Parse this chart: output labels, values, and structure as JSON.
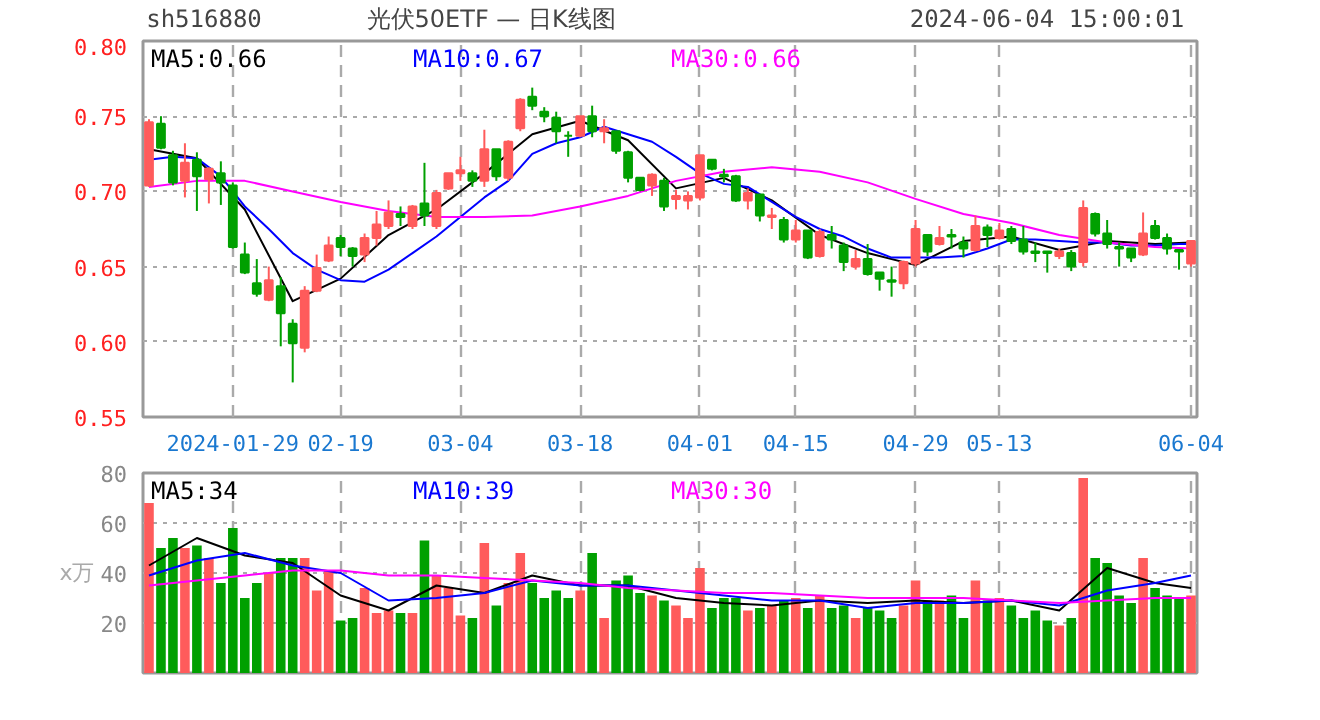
{
  "chart_data": [
    {
      "type": "candlestick",
      "title": "光伏50ETF — 日K线图",
      "subtitle": "sh516880",
      "annotations": [
        "2024-06-04 15:00:01"
      ],
      "categories": [
        null,
        null,
        null,
        null,
        null,
        null,
        null,
        "2024-01-29",
        null,
        null,
        null,
        null,
        null,
        null,
        null,
        null,
        "02-19",
        null,
        null,
        null,
        null,
        null,
        null,
        null,
        null,
        null,
        "03-04",
        null,
        null,
        null,
        null,
        null,
        null,
        null,
        null,
        null,
        "03-18",
        null,
        null,
        null,
        null,
        null,
        null,
        null,
        null,
        null,
        "04-01",
        null,
        null,
        null,
        null,
        null,
        null,
        null,
        "04-15",
        null,
        null,
        null,
        null,
        null,
        null,
        null,
        null,
        null,
        "04-29",
        null,
        null,
        null,
        null,
        null,
        null,
        "05-13",
        null,
        null,
        null,
        null,
        null,
        null,
        null,
        null,
        null,
        null,
        null,
        null,
        null,
        null,
        null,
        "06-04"
      ],
      "ylim": [
        0.55,
        0.8
      ],
      "yticks": [
        0.55,
        {
          "value": 0.6,
          "label": "0.60"
        },
        0.65,
        {
          "value": 0.7,
          "label": "0.70"
        },
        0.75,
        {
          "value": 0.8,
          "label": "0.80"
        }
      ],
      "grid": true,
      "legend": "top",
      "ohlc": [
        [
          0.704,
          0.748,
          0.703,
          0.746
        ],
        [
          0.745,
          0.75,
          0.728,
          0.729
        ],
        [
          0.724,
          0.727,
          0.704,
          0.706
        ],
        [
          0.707,
          0.732,
          0.696,
          0.719
        ],
        [
          0.721,
          0.726,
          0.687,
          0.71
        ],
        [
          0.708,
          0.716,
          0.692,
          0.715
        ],
        [
          0.712,
          0.72,
          0.691,
          0.706
        ],
        [
          0.704,
          0.706,
          0.662,
          0.663
        ],
        [
          0.658,
          0.666,
          0.645,
          0.646
        ],
        [
          0.639,
          0.655,
          0.63,
          0.632
        ],
        [
          0.628,
          0.65,
          0.627,
          0.641
        ],
        [
          0.637,
          0.643,
          0.597,
          0.619
        ],
        [
          0.612,
          0.615,
          0.573,
          0.599
        ],
        [
          0.596,
          0.637,
          0.593,
          0.634
        ],
        [
          0.634,
          0.658,
          0.633,
          0.649
        ],
        [
          0.654,
          0.67,
          0.653,
          0.664
        ],
        [
          0.669,
          0.671,
          0.657,
          0.663
        ],
        [
          0.662,
          0.663,
          0.65,
          0.657
        ],
        [
          0.658,
          0.672,
          0.653,
          0.669
        ],
        [
          0.669,
          0.687,
          0.664,
          0.678
        ],
        [
          0.677,
          0.694,
          0.675,
          0.686
        ],
        [
          0.685,
          0.69,
          0.677,
          0.683
        ],
        [
          0.677,
          0.691,
          0.675,
          0.69
        ],
        [
          0.692,
          0.719,
          0.677,
          0.684
        ],
        [
          0.677,
          0.701,
          0.675,
          0.699
        ],
        [
          0.702,
          0.712,
          0.701,
          0.712
        ],
        [
          0.712,
          0.723,
          0.707,
          0.714
        ],
        [
          0.712,
          0.714,
          0.703,
          0.707
        ],
        [
          0.707,
          0.741,
          0.703,
          0.728
        ],
        [
          0.728,
          0.728,
          0.707,
          0.71
        ],
        [
          0.709,
          0.734,
          0.707,
          0.733
        ],
        [
          0.742,
          0.762,
          0.74,
          0.761
        ],
        [
          0.763,
          0.769,
          0.754,
          0.757
        ],
        [
          0.753,
          0.756,
          0.746,
          0.75
        ],
        [
          0.749,
          0.753,
          0.732,
          0.74
        ],
        [
          0.737,
          0.74,
          0.723,
          0.737
        ],
        [
          0.737,
          0.75,
          0.736,
          0.75
        ],
        [
          0.75,
          0.757,
          0.736,
          0.74
        ],
        [
          0.74,
          0.748,
          0.732,
          0.742
        ],
        [
          0.74,
          0.74,
          0.725,
          0.727
        ],
        [
          0.726,
          0.727,
          0.706,
          0.709
        ],
        [
          0.709,
          0.709,
          0.7,
          0.701
        ],
        [
          0.704,
          0.712,
          0.697,
          0.711
        ],
        [
          0.707,
          0.709,
          0.687,
          0.69
        ],
        [
          0.695,
          0.701,
          0.688,
          0.697
        ],
        [
          0.694,
          0.7,
          0.688,
          0.697
        ],
        [
          0.696,
          0.724,
          0.694,
          0.724
        ],
        [
          0.721,
          0.721,
          0.714,
          0.715
        ],
        [
          0.711,
          0.715,
          0.706,
          0.71
        ],
        [
          0.71,
          0.711,
          0.693,
          0.694
        ],
        [
          0.694,
          0.702,
          0.688,
          0.699
        ],
        [
          0.698,
          0.698,
          0.68,
          0.684
        ],
        [
          0.683,
          0.689,
          0.675,
          0.684
        ],
        [
          0.681,
          0.683,
          0.666,
          0.668
        ],
        [
          0.668,
          0.681,
          0.666,
          0.674
        ],
        [
          0.674,
          0.674,
          0.655,
          0.656
        ],
        [
          0.657,
          0.675,
          0.656,
          0.673
        ],
        [
          0.671,
          0.677,
          0.662,
          0.668
        ],
        [
          0.664,
          0.666,
          0.647,
          0.653
        ],
        [
          0.65,
          0.661,
          0.648,
          0.655
        ],
        [
          0.655,
          0.665,
          0.644,
          0.645
        ],
        [
          0.646,
          0.646,
          0.634,
          0.642
        ],
        [
          0.641,
          0.65,
          0.63,
          0.64
        ],
        [
          0.639,
          0.654,
          0.635,
          0.653
        ],
        [
          0.652,
          0.681,
          0.65,
          0.675
        ],
        [
          0.671,
          0.671,
          0.657,
          0.66
        ],
        [
          0.665,
          0.677,
          0.664,
          0.669
        ],
        [
          0.671,
          0.675,
          0.662,
          0.67
        ],
        [
          0.666,
          0.67,
          0.656,
          0.662
        ],
        [
          0.661,
          0.684,
          0.66,
          0.677
        ],
        [
          0.676,
          0.678,
          0.663,
          0.671
        ],
        [
          0.669,
          0.679,
          0.668,
          0.674
        ],
        [
          0.675,
          0.677,
          0.665,
          0.667
        ],
        [
          0.668,
          0.677,
          0.658,
          0.66
        ],
        [
          0.66,
          0.666,
          0.653,
          0.659
        ],
        [
          0.66,
          0.66,
          0.646,
          0.659
        ],
        [
          0.657,
          0.662,
          0.655,
          0.66
        ],
        [
          0.659,
          0.661,
          0.647,
          0.65
        ],
        [
          0.653,
          0.694,
          0.65,
          0.689
        ],
        [
          0.685,
          0.686,
          0.67,
          0.672
        ],
        [
          0.672,
          0.681,
          0.662,
          0.665
        ],
        [
          0.663,
          0.666,
          0.65,
          0.662
        ],
        [
          0.662,
          0.662,
          0.653,
          0.656
        ],
        [
          0.658,
          0.686,
          0.657,
          0.672
        ],
        [
          0.677,
          0.681,
          0.668,
          0.669
        ],
        [
          0.669,
          0.672,
          0.658,
          0.662
        ],
        [
          0.661,
          0.661,
          0.648,
          0.66
        ],
        [
          0.652,
          0.667,
          0.65,
          0.667
        ]
      ],
      "colors": [
        "#ff5b5b",
        "#00a000",
        "#00a000",
        "#ff5b5b",
        "#00a000",
        "#ff5b5b",
        "#00a000",
        "#00a000",
        "#00a000",
        "#00a000",
        "#ff5b5b",
        "#00a000",
        "#00a000",
        "#ff5b5b",
        "#ff5b5b",
        "#ff5b5b",
        "#00a000",
        "#00a000",
        "#ff5b5b",
        "#ff5b5b",
        "#ff5b5b",
        "#00a000",
        "#ff5b5b",
        "#00a000",
        "#ff5b5b",
        "#ff5b5b",
        "#ff5b5b",
        "#00a000",
        "#ff5b5b",
        "#00a000",
        "#ff5b5b",
        "#ff5b5b",
        "#00a000",
        "#00a000",
        "#00a000",
        "#00a000",
        "#ff5b5b",
        "#00a000",
        "#ff5b5b",
        "#00a000",
        "#00a000",
        "#00a000",
        "#ff5b5b",
        "#00a000",
        "#ff5b5b",
        "#ff5b5b",
        "#ff5b5b",
        "#00a000",
        "#00a000",
        "#00a000",
        "#ff5b5b",
        "#00a000",
        "#ff5b5b",
        "#00a000",
        "#ff5b5b",
        "#00a000",
        "#ff5b5b",
        "#00a000",
        "#00a000",
        "#ff5b5b",
        "#00a000",
        "#00a000",
        "#00a000",
        "#ff5b5b",
        "#ff5b5b",
        "#00a000",
        "#ff5b5b",
        "#00a000",
        "#00a000",
        "#ff5b5b",
        "#00a000",
        "#ff5b5b",
        "#00a000",
        "#00a000",
        "#00a000",
        "#00a000",
        "#ff5b5b",
        "#00a000",
        "#ff5b5b",
        "#00a000",
        "#00a000",
        "#00a000",
        "#00a000",
        "#ff5b5b",
        "#00a000",
        "#00a000",
        "#00a000",
        "#ff5b5b"
      ],
      "series": [
        {
          "type": "line",
          "name": "MA5:0.66",
          "color": "#000000",
          "values": [
            0.728,
            null,
            null,
            null,
            0.722,
            null,
            null,
            null,
            0.688,
            null,
            null,
            null,
            0.627,
            null,
            null,
            null,
            0.642,
            null,
            null,
            null,
            0.671,
            null,
            null,
            null,
            0.688,
            null,
            null,
            null,
            0.712,
            null,
            null,
            null,
            0.738,
            null,
            null,
            null,
            0.747,
            null,
            null,
            null,
            0.734,
            null,
            null,
            null,
            0.702,
            null,
            null,
            null,
            0.709,
            null,
            null,
            null,
            0.694,
            null,
            null,
            null,
            0.671,
            null,
            null,
            null,
            0.659,
            null,
            null,
            null,
            0.651,
            null,
            null,
            null,
            0.667,
            null,
            null,
            null,
            0.67,
            null,
            null,
            null,
            0.661,
            null,
            null,
            null,
            0.667,
            null,
            null,
            null,
            0.665,
            null,
            null,
            0.666
          ]
        },
        {
          "type": "line",
          "name": "MA10:0.67",
          "color": "#0000ff",
          "values": [
            0.721,
            null,
            0.723,
            null,
            0.722,
            null,
            0.71,
            null,
            0.69,
            null,
            0.675,
            null,
            0.659,
            null,
            0.648,
            null,
            0.641,
            null,
            0.64,
            null,
            0.648,
            null,
            0.659,
            null,
            0.67,
            null,
            0.683,
            null,
            0.696,
            null,
            0.707,
            null,
            0.725,
            null,
            0.732,
            null,
            0.736,
            null,
            0.743,
            null,
            0.738,
            null,
            0.733,
            null,
            0.723,
            null,
            0.712,
            null,
            0.705,
            null,
            0.703,
            null,
            0.693,
            null,
            0.683,
            null,
            0.675,
            null,
            0.67,
            null,
            0.662,
            null,
            0.656,
            null,
            0.656,
            null,
            0.656,
            null,
            0.657,
            null,
            0.662,
            null,
            0.668,
            null,
            0.668,
            null,
            0.667,
            null,
            0.666,
            null,
            0.666,
            null,
            0.664,
            null,
            0.664,
            null,
            0.665,
            0.665
          ]
        },
        {
          "type": "line",
          "name": "MA30:0.66",
          "color": "#ff00ff",
          "values": [
            0.703,
            null,
            null,
            null,
            0.707,
            null,
            null,
            null,
            0.707,
            null,
            null,
            null,
            0.7,
            null,
            null,
            null,
            0.693,
            null,
            null,
            null,
            0.687,
            null,
            null,
            null,
            0.683,
            null,
            null,
            null,
            0.683,
            null,
            null,
            null,
            0.684,
            null,
            null,
            null,
            0.69,
            null,
            null,
            null,
            0.697,
            null,
            null,
            null,
            0.707,
            null,
            null,
            null,
            0.713,
            null,
            null,
            null,
            0.716,
            null,
            null,
            null,
            0.713,
            null,
            null,
            null,
            0.706,
            null,
            null,
            null,
            0.695,
            null,
            null,
            null,
            0.685,
            null,
            null,
            null,
            0.679,
            null,
            null,
            null,
            0.671,
            null,
            null,
            null,
            0.666,
            null,
            null,
            null,
            0.663,
            null,
            null,
            0.662
          ]
        }
      ]
    },
    {
      "type": "bar",
      "annotations": [
        "x万"
      ],
      "categories": [
        null,
        null,
        null,
        null,
        null,
        null,
        null,
        null,
        null,
        null,
        null,
        null,
        null,
        null,
        null,
        null,
        null,
        null,
        null,
        null,
        null,
        null,
        null,
        null,
        null,
        null,
        null,
        null,
        null,
        null,
        null,
        null,
        null,
        null,
        null,
        null,
        null,
        null,
        null,
        null,
        null,
        null,
        null,
        null,
        null,
        null,
        null,
        null,
        null,
        null,
        null,
        null,
        null,
        null,
        null,
        null,
        null,
        null,
        null,
        null,
        null,
        null,
        null,
        null,
        null,
        null,
        null,
        null,
        null,
        null,
        null,
        null,
        null,
        null,
        null,
        null,
        null,
        null,
        null,
        null,
        null,
        null,
        null,
        null,
        null,
        null,
        null,
        null
      ],
      "ylim": [
        0,
        80
      ],
      "yticks": [
        20,
        40,
        60,
        80
      ],
      "grid": true,
      "legend": "top",
      "series": [
        {
          "type": "bar",
          "values": [
            68,
            50,
            54,
            50,
            51,
            46,
            36,
            58,
            30,
            36,
            40,
            46,
            46,
            46,
            33,
            41,
            21,
            22,
            34,
            24,
            25,
            24,
            24,
            53,
            39,
            34,
            23,
            22,
            52,
            27,
            36,
            48,
            36,
            30,
            33,
            30,
            33,
            48,
            22,
            37,
            39,
            32,
            31,
            29,
            27,
            22,
            42,
            26,
            30,
            30,
            25,
            26,
            27,
            29,
            30,
            26,
            31,
            26,
            27,
            22,
            26,
            25,
            22,
            27,
            37,
            29,
            29,
            31,
            22,
            37,
            29,
            30,
            27,
            22,
            25,
            21,
            19,
            22,
            78,
            46,
            44,
            31,
            28,
            46,
            34,
            31,
            30,
            31
          ],
          "colors": [
            "#ff5b5b",
            "#00a000",
            "#00a000",
            "#ff5b5b",
            "#00a000",
            "#ff5b5b",
            "#00a000",
            "#00a000",
            "#00a000",
            "#00a000",
            "#ff5b5b",
            "#00a000",
            "#00a000",
            "#ff5b5b",
            "#ff5b5b",
            "#ff5b5b",
            "#00a000",
            "#00a000",
            "#ff5b5b",
            "#ff5b5b",
            "#ff5b5b",
            "#00a000",
            "#ff5b5b",
            "#00a000",
            "#ff5b5b",
            "#ff5b5b",
            "#ff5b5b",
            "#00a000",
            "#ff5b5b",
            "#00a000",
            "#ff5b5b",
            "#ff5b5b",
            "#00a000",
            "#00a000",
            "#00a000",
            "#00a000",
            "#ff5b5b",
            "#00a000",
            "#ff5b5b",
            "#00a000",
            "#00a000",
            "#00a000",
            "#ff5b5b",
            "#00a000",
            "#ff5b5b",
            "#ff5b5b",
            "#ff5b5b",
            "#00a000",
            "#00a000",
            "#00a000",
            "#ff5b5b",
            "#00a000",
            "#ff5b5b",
            "#00a000",
            "#ff5b5b",
            "#00a000",
            "#ff5b5b",
            "#00a000",
            "#00a000",
            "#ff5b5b",
            "#00a000",
            "#00a000",
            "#00a000",
            "#ff5b5b",
            "#ff5b5b",
            "#00a000",
            "#ff5b5b",
            "#00a000",
            "#00a000",
            "#ff5b5b",
            "#00a000",
            "#ff5b5b",
            "#00a000",
            "#00a000",
            "#00a000",
            "#00a000",
            "#ff5b5b",
            "#00a000",
            "#ff5b5b",
            "#00a000",
            "#00a000",
            "#00a000",
            "#00a000",
            "#ff5b5b",
            "#00a000",
            "#00a000",
            "#00a000",
            "#ff5b5b"
          ]
        },
        {
          "type": "line",
          "name": "MA5:34",
          "color": "#000000",
          "values": [
            43,
            null,
            null,
            null,
            54,
            null,
            null,
            null,
            47,
            null,
            null,
            null,
            44,
            null,
            null,
            null,
            31,
            null,
            null,
            null,
            25,
            null,
            null,
            null,
            35,
            null,
            null,
            null,
            32,
            null,
            null,
            null,
            39,
            null,
            null,
            null,
            35,
            null,
            null,
            null,
            35,
            null,
            null,
            null,
            30,
            null,
            null,
            null,
            28,
            null,
            null,
            null,
            27,
            null,
            null,
            null,
            29,
            null,
            null,
            null,
            28,
            null,
            null,
            null,
            29,
            null,
            null,
            null,
            28,
            null,
            null,
            null,
            29,
            null,
            null,
            null,
            25,
            null,
            null,
            null,
            42,
            null,
            null,
            null,
            36,
            null,
            null,
            34
          ]
        },
        {
          "type": "line",
          "name": "MA10:39",
          "color": "#0000ff",
          "values": [
            39,
            null,
            null,
            null,
            45,
            null,
            null,
            null,
            48,
            null,
            null,
            null,
            43,
            null,
            null,
            null,
            40,
            null,
            null,
            null,
            29,
            null,
            null,
            null,
            30,
            null,
            null,
            null,
            32,
            null,
            null,
            null,
            37,
            null,
            null,
            null,
            35,
            null,
            null,
            null,
            35,
            null,
            null,
            null,
            33,
            null,
            null,
            null,
            31,
            null,
            null,
            null,
            29,
            null,
            null,
            null,
            29,
            null,
            null,
            null,
            26,
            null,
            null,
            null,
            28,
            null,
            null,
            null,
            28,
            null,
            null,
            null,
            29,
            null,
            null,
            null,
            27,
            null,
            null,
            null,
            33,
            null,
            null,
            null,
            36,
            null,
            null,
            39
          ]
        },
        {
          "type": "line",
          "name": "MA30:30",
          "color": "#ff00ff",
          "values": [
            35,
            null,
            null,
            null,
            37,
            null,
            null,
            null,
            39,
            null,
            null,
            null,
            41,
            null,
            null,
            null,
            41,
            null,
            null,
            null,
            39,
            null,
            null,
            null,
            39,
            null,
            null,
            null,
            38,
            null,
            null,
            null,
            37,
            null,
            null,
            null,
            36,
            null,
            null,
            null,
            34,
            null,
            null,
            null,
            33,
            null,
            null,
            null,
            32,
            null,
            null,
            null,
            32,
            null,
            null,
            null,
            31,
            null,
            null,
            null,
            30,
            null,
            null,
            null,
            30,
            null,
            null,
            null,
            30,
            null,
            null,
            null,
            29,
            null,
            null,
            null,
            28,
            null,
            null,
            null,
            29,
            null,
            null,
            null,
            30,
            null,
            null,
            30
          ]
        }
      ]
    }
  ]
}
